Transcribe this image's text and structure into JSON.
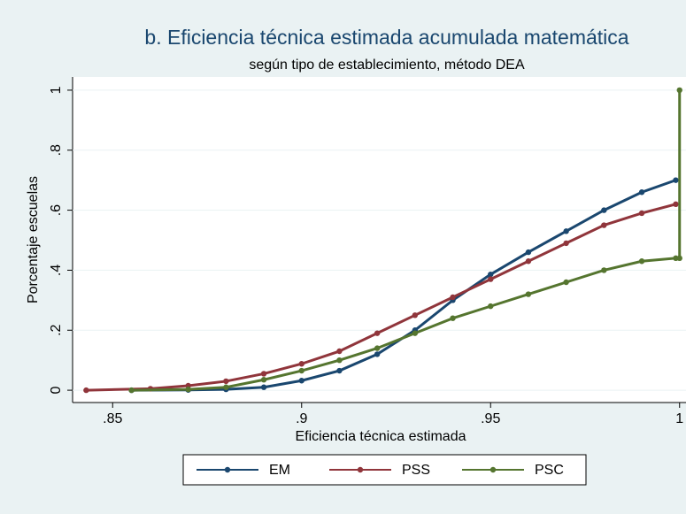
{
  "chart_data": {
    "type": "line",
    "title": "b. Eficiencia técnica estimada acumulada matemática",
    "subtitle": "según tipo de establecimiento, método DEA",
    "x_label": "Eficiencia técnica estimada",
    "y_label": "Porcentaje escuelas",
    "xlim": [
      0.8394,
      1.0017
    ],
    "ylim": [
      -0.041,
      1.044
    ],
    "xticks": [
      {
        "value": 0.85,
        "label": ".85"
      },
      {
        "value": 0.9,
        "label": ".9"
      },
      {
        "value": 0.95,
        "label": ".95"
      },
      1
    ],
    "yticks": [
      0,
      {
        "value": 0.2,
        "label": ".2"
      },
      {
        "value": 0.4,
        "label": ".4"
      },
      {
        "value": 0.6,
        "label": ".6"
      },
      {
        "value": 0.8,
        "label": ".8"
      },
      1
    ],
    "grid": true,
    "series": [
      {
        "name": "EM",
        "color": "#1a476f",
        "x": [
          0.855,
          0.87,
          0.88,
          0.89,
          0.9,
          0.91,
          0.92,
          0.93,
          0.94,
          0.95,
          0.96,
          0.97,
          0.98,
          0.99,
          0.999
        ],
        "values": [
          0,
          0.001,
          0.003,
          0.01,
          0.032,
          0.065,
          0.12,
          0.2,
          0.3,
          0.386,
          0.46,
          0.53,
          0.6,
          0.66,
          0.7
        ]
      },
      {
        "name": "PSS",
        "color": "#90353b",
        "x": [
          0.843,
          0.86,
          0.87,
          0.88,
          0.89,
          0.9,
          0.91,
          0.92,
          0.93,
          0.94,
          0.95,
          0.96,
          0.97,
          0.98,
          0.99,
          0.999
        ],
        "values": [
          0,
          0.005,
          0.015,
          0.03,
          0.055,
          0.088,
          0.13,
          0.19,
          0.25,
          0.31,
          0.37,
          0.43,
          0.49,
          0.55,
          0.59,
          0.62
        ]
      },
      {
        "name": "PSC",
        "color": "#55752f",
        "x": [
          0.855,
          0.87,
          0.88,
          0.89,
          0.9,
          0.91,
          0.92,
          0.93,
          0.94,
          0.95,
          0.96,
          0.97,
          0.98,
          0.99,
          0.999,
          1,
          1
        ],
        "values": [
          0,
          0.003,
          0.01,
          0.035,
          0.065,
          0.1,
          0.14,
          0.19,
          0.24,
          0.28,
          0.32,
          0.36,
          0.4,
          0.43,
          0.44,
          0.44,
          1
        ]
      }
    ]
  }
}
